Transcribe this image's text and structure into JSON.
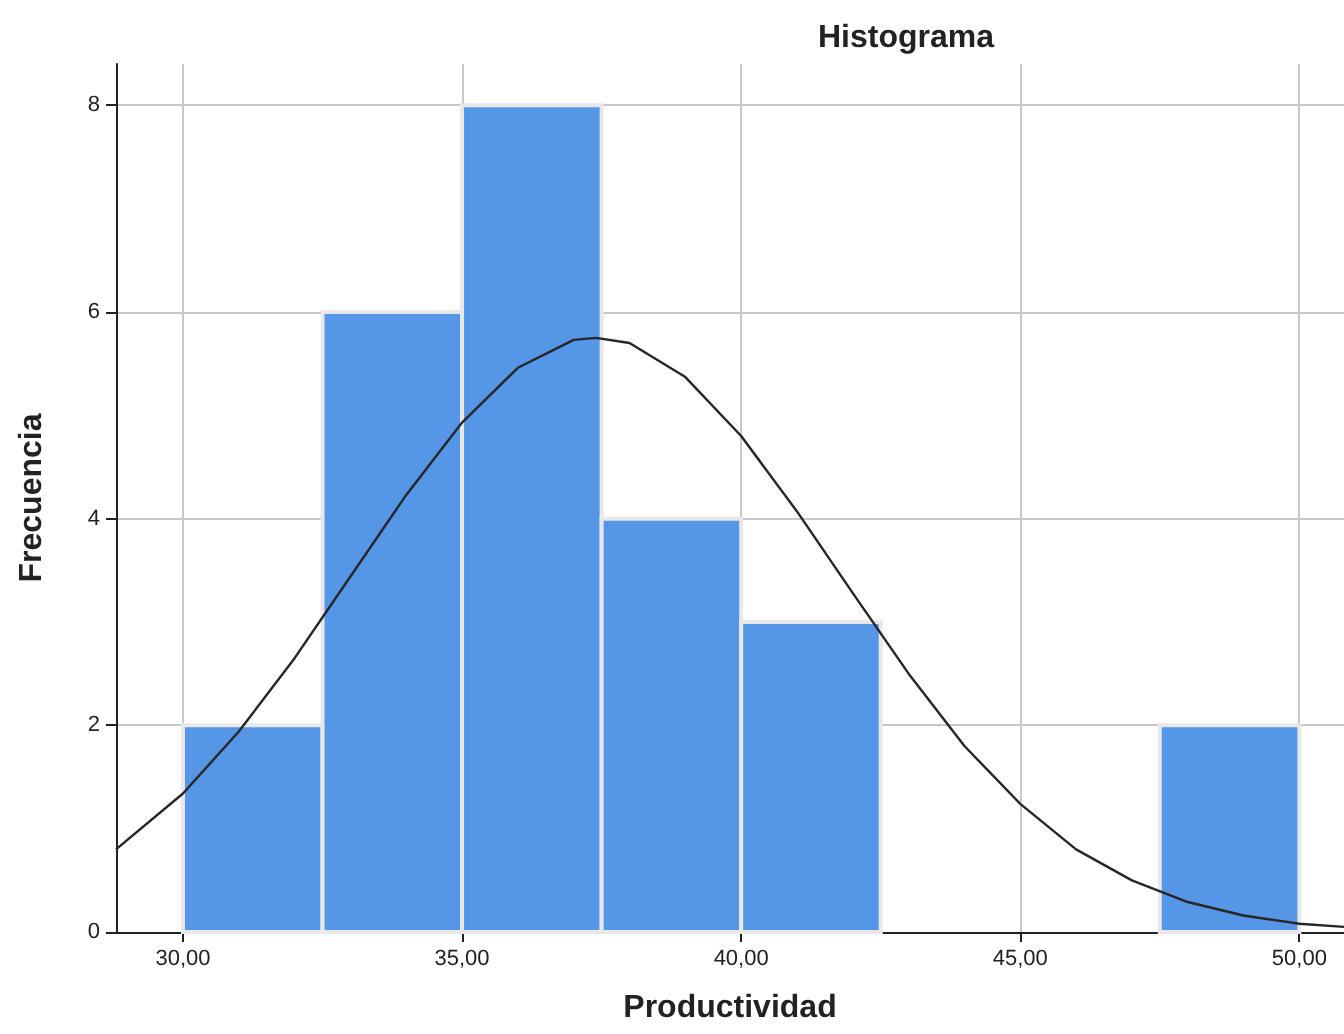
{
  "chart_data": {
    "type": "histogram",
    "title": "Histograma",
    "xlabel": "Productividad",
    "ylabel": "Frecuencia",
    "bins": [
      30,
      32.5,
      35,
      37.5,
      40,
      42.5,
      45,
      47.5,
      50
    ],
    "values": [
      2,
      6,
      8,
      4,
      3,
      0,
      0,
      2
    ],
    "color": "#5596e6",
    "series": [
      {
        "type": "line",
        "color": "#262626",
        "x": [
          28.8,
          30,
          31,
          32,
          33,
          34,
          35,
          36,
          37,
          37.4,
          38,
          39,
          40,
          41,
          42,
          43,
          44,
          45,
          46,
          47,
          48,
          49,
          50,
          50.8
        ],
        "values": [
          0.8,
          1.34,
          1.94,
          2.65,
          3.44,
          4.23,
          4.93,
          5.46,
          5.73,
          5.75,
          5.7,
          5.37,
          4.8,
          4.07,
          3.28,
          2.5,
          1.8,
          1.24,
          0.8,
          0.5,
          0.29,
          0.16,
          0.08,
          0.05
        ]
      }
    ],
    "xlim": [
      28.8,
      50.8
    ],
    "xticks": [
      {
        "value": 30,
        "label": "30,00"
      },
      {
        "value": 35,
        "label": "35,00"
      },
      {
        "value": 40,
        "label": "40,00"
      },
      {
        "value": 45,
        "label": "45,00"
      },
      {
        "value": 50,
        "label": "50,00"
      }
    ],
    "ylim": [
      0,
      8.4
    ],
    "yticks": [
      0,
      2,
      4,
      6,
      8
    ],
    "grid": true,
    "marker": "none",
    "line_style": "solid"
  }
}
